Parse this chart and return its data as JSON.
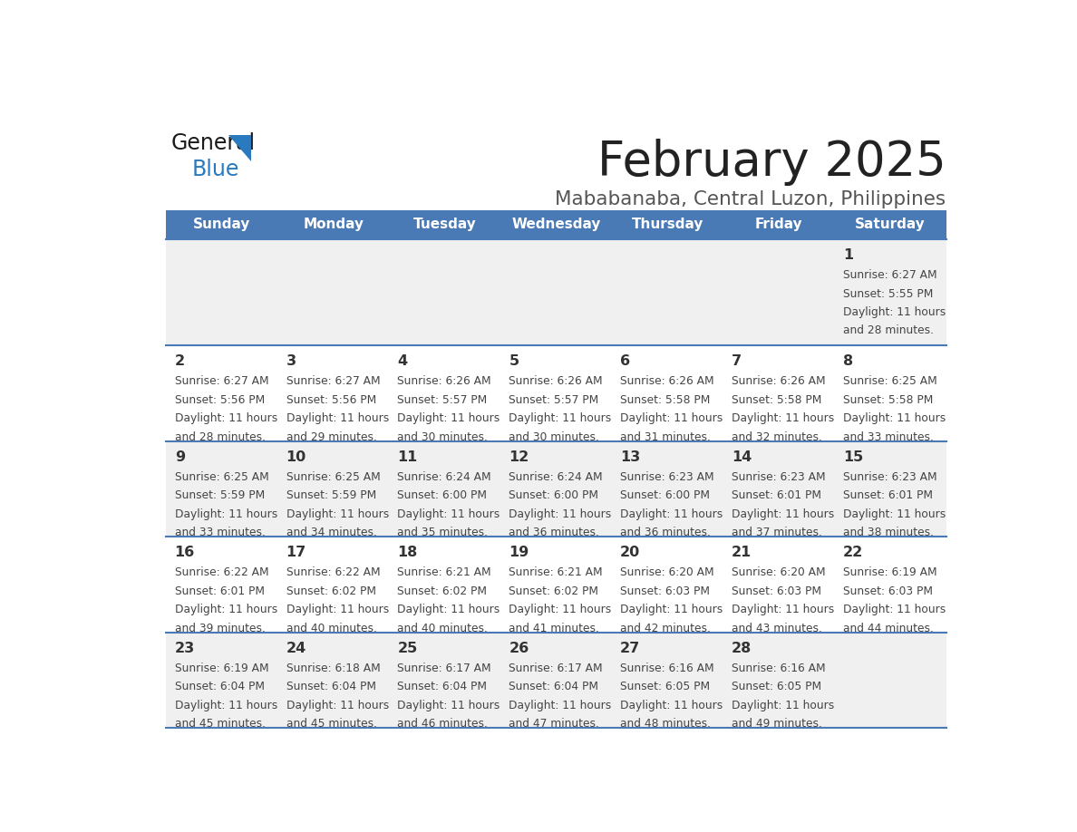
{
  "title": "February 2025",
  "subtitle": "Mababanaba, Central Luzon, Philippines",
  "days_of_week": [
    "Sunday",
    "Monday",
    "Tuesday",
    "Wednesday",
    "Thursday",
    "Friday",
    "Saturday"
  ],
  "header_bg_color": "#4a7ab5",
  "header_text_color": "#ffffff",
  "row_bg_color0": "#f0f0f0",
  "row_bg_color1": "#ffffff",
  "row_line_color": "#4a7ab5",
  "day_number_color": "#333333",
  "cell_text_color": "#444444",
  "title_color": "#222222",
  "subtitle_color": "#555555",
  "logo_general_color": "#1a1a1a",
  "logo_blue_color": "#2a7abf",
  "calendar_data": [
    {
      "day": 1,
      "col": 6,
      "row": 0,
      "sunrise": "6:27 AM",
      "sunset": "5:55 PM",
      "daylight": "11 hours",
      "daylight2": "and 28 minutes."
    },
    {
      "day": 2,
      "col": 0,
      "row": 1,
      "sunrise": "6:27 AM",
      "sunset": "5:56 PM",
      "daylight": "11 hours",
      "daylight2": "and 28 minutes."
    },
    {
      "day": 3,
      "col": 1,
      "row": 1,
      "sunrise": "6:27 AM",
      "sunset": "5:56 PM",
      "daylight": "11 hours",
      "daylight2": "and 29 minutes."
    },
    {
      "day": 4,
      "col": 2,
      "row": 1,
      "sunrise": "6:26 AM",
      "sunset": "5:57 PM",
      "daylight": "11 hours",
      "daylight2": "and 30 minutes."
    },
    {
      "day": 5,
      "col": 3,
      "row": 1,
      "sunrise": "6:26 AM",
      "sunset": "5:57 PM",
      "daylight": "11 hours",
      "daylight2": "and 30 minutes."
    },
    {
      "day": 6,
      "col": 4,
      "row": 1,
      "sunrise": "6:26 AM",
      "sunset": "5:58 PM",
      "daylight": "11 hours",
      "daylight2": "and 31 minutes."
    },
    {
      "day": 7,
      "col": 5,
      "row": 1,
      "sunrise": "6:26 AM",
      "sunset": "5:58 PM",
      "daylight": "11 hours",
      "daylight2": "and 32 minutes."
    },
    {
      "day": 8,
      "col": 6,
      "row": 1,
      "sunrise": "6:25 AM",
      "sunset": "5:58 PM",
      "daylight": "11 hours",
      "daylight2": "and 33 minutes."
    },
    {
      "day": 9,
      "col": 0,
      "row": 2,
      "sunrise": "6:25 AM",
      "sunset": "5:59 PM",
      "daylight": "11 hours",
      "daylight2": "and 33 minutes."
    },
    {
      "day": 10,
      "col": 1,
      "row": 2,
      "sunrise": "6:25 AM",
      "sunset": "5:59 PM",
      "daylight": "11 hours",
      "daylight2": "and 34 minutes."
    },
    {
      "day": 11,
      "col": 2,
      "row": 2,
      "sunrise": "6:24 AM",
      "sunset": "6:00 PM",
      "daylight": "11 hours",
      "daylight2": "and 35 minutes."
    },
    {
      "day": 12,
      "col": 3,
      "row": 2,
      "sunrise": "6:24 AM",
      "sunset": "6:00 PM",
      "daylight": "11 hours",
      "daylight2": "and 36 minutes."
    },
    {
      "day": 13,
      "col": 4,
      "row": 2,
      "sunrise": "6:23 AM",
      "sunset": "6:00 PM",
      "daylight": "11 hours",
      "daylight2": "and 36 minutes."
    },
    {
      "day": 14,
      "col": 5,
      "row": 2,
      "sunrise": "6:23 AM",
      "sunset": "6:01 PM",
      "daylight": "11 hours",
      "daylight2": "and 37 minutes."
    },
    {
      "day": 15,
      "col": 6,
      "row": 2,
      "sunrise": "6:23 AM",
      "sunset": "6:01 PM",
      "daylight": "11 hours",
      "daylight2": "and 38 minutes."
    },
    {
      "day": 16,
      "col": 0,
      "row": 3,
      "sunrise": "6:22 AM",
      "sunset": "6:01 PM",
      "daylight": "11 hours",
      "daylight2": "and 39 minutes."
    },
    {
      "day": 17,
      "col": 1,
      "row": 3,
      "sunrise": "6:22 AM",
      "sunset": "6:02 PM",
      "daylight": "11 hours",
      "daylight2": "and 40 minutes."
    },
    {
      "day": 18,
      "col": 2,
      "row": 3,
      "sunrise": "6:21 AM",
      "sunset": "6:02 PM",
      "daylight": "11 hours",
      "daylight2": "and 40 minutes."
    },
    {
      "day": 19,
      "col": 3,
      "row": 3,
      "sunrise": "6:21 AM",
      "sunset": "6:02 PM",
      "daylight": "11 hours",
      "daylight2": "and 41 minutes."
    },
    {
      "day": 20,
      "col": 4,
      "row": 3,
      "sunrise": "6:20 AM",
      "sunset": "6:03 PM",
      "daylight": "11 hours",
      "daylight2": "and 42 minutes."
    },
    {
      "day": 21,
      "col": 5,
      "row": 3,
      "sunrise": "6:20 AM",
      "sunset": "6:03 PM",
      "daylight": "11 hours",
      "daylight2": "and 43 minutes."
    },
    {
      "day": 22,
      "col": 6,
      "row": 3,
      "sunrise": "6:19 AM",
      "sunset": "6:03 PM",
      "daylight": "11 hours",
      "daylight2": "and 44 minutes."
    },
    {
      "day": 23,
      "col": 0,
      "row": 4,
      "sunrise": "6:19 AM",
      "sunset": "6:04 PM",
      "daylight": "11 hours",
      "daylight2": "and 45 minutes."
    },
    {
      "day": 24,
      "col": 1,
      "row": 4,
      "sunrise": "6:18 AM",
      "sunset": "6:04 PM",
      "daylight": "11 hours",
      "daylight2": "and 45 minutes."
    },
    {
      "day": 25,
      "col": 2,
      "row": 4,
      "sunrise": "6:17 AM",
      "sunset": "6:04 PM",
      "daylight": "11 hours",
      "daylight2": "and 46 minutes."
    },
    {
      "day": 26,
      "col": 3,
      "row": 4,
      "sunrise": "6:17 AM",
      "sunset": "6:04 PM",
      "daylight": "11 hours",
      "daylight2": "and 47 minutes."
    },
    {
      "day": 27,
      "col": 4,
      "row": 4,
      "sunrise": "6:16 AM",
      "sunset": "6:05 PM",
      "daylight": "11 hours",
      "daylight2": "and 48 minutes."
    },
    {
      "day": 28,
      "col": 5,
      "row": 4,
      "sunrise": "6:16 AM",
      "sunset": "6:05 PM",
      "daylight": "11 hours",
      "daylight2": "and 49 minutes."
    }
  ]
}
